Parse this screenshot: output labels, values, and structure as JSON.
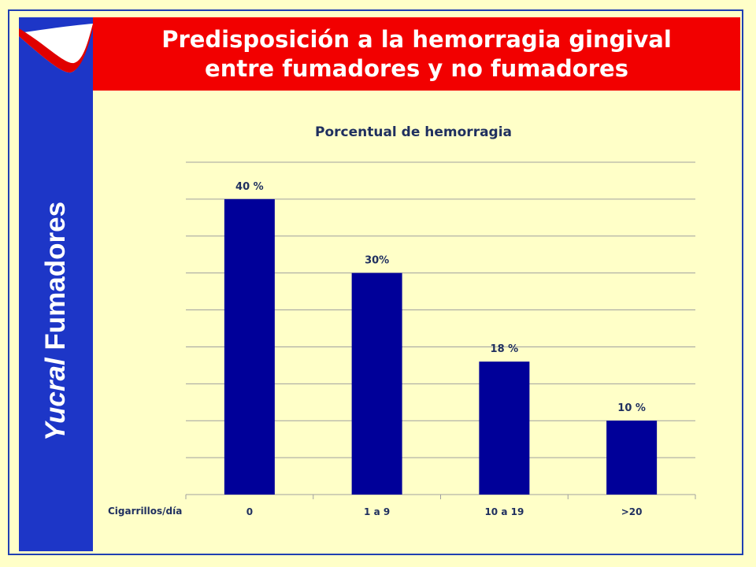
{
  "slide": {
    "title": "Predisposición a la hemorragia gingival entre fumadores y no fumadores",
    "sidebar_brand": "Yucral",
    "sidebar_word": "Fumadores",
    "logo": "Yucral logo swoosh"
  },
  "colors": {
    "background": "#ffffc8",
    "title_bar": "#f20000",
    "sidebar": "#1d36c7",
    "bar": "#000099",
    "grid": "#a0a0a0"
  },
  "chart_data": {
    "type": "bar",
    "title": "Porcentual de hemorragia",
    "xlabel": "Cigarrillos/día",
    "ylabel": "",
    "categories": [
      "0",
      "1 a 9",
      "10 a 19",
      ">20"
    ],
    "values": [
      40,
      30,
      18,
      10
    ],
    "data_labels": [
      "40 %",
      "30%",
      "18 %",
      "10 %"
    ],
    "ylim": [
      0,
      45
    ],
    "grid": true,
    "legend": "none"
  }
}
